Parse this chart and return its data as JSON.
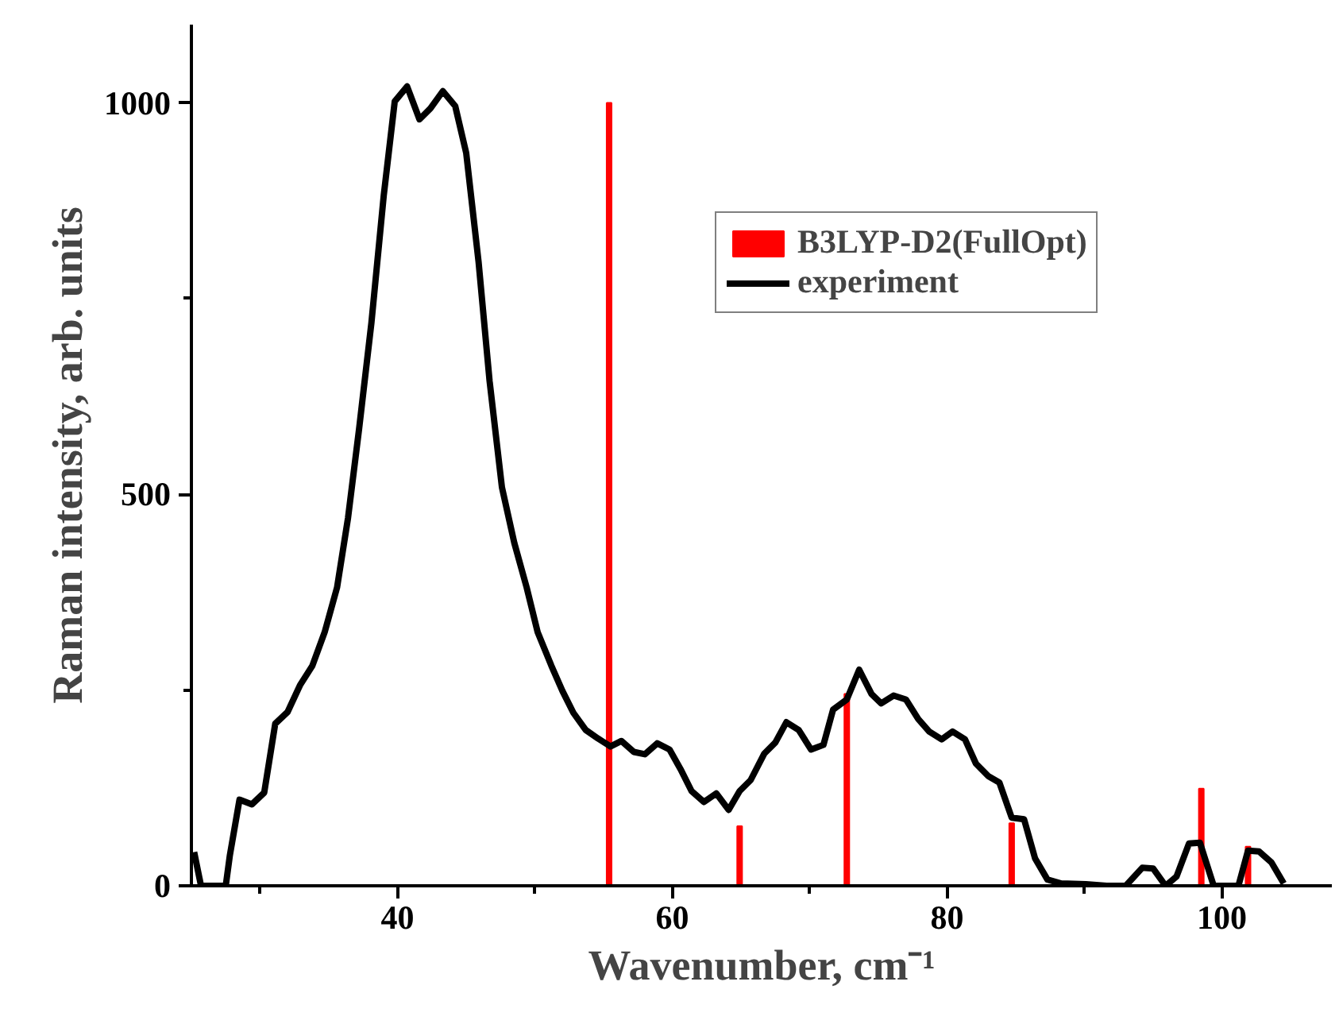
{
  "chart_data": {
    "type": "line",
    "xlabel": "Wavenumber, cm⁻¹",
    "ylabel": "Raman intensity, arb. units",
    "xlim": [
      25,
      108
    ],
    "ylim": [
      0,
      1100
    ],
    "xticks": [
      {
        "value": 30,
        "label": null
      },
      40,
      {
        "value": 50,
        "label": null
      },
      60,
      {
        "value": 70,
        "label": null
      },
      80,
      {
        "value": 90,
        "label": null
      },
      100
    ],
    "yticks": [
      0,
      {
        "value": 250,
        "label": null
      },
      500,
      {
        "value": 750,
        "label": null
      },
      1000
    ],
    "grid": false,
    "legend": "top right",
    "series": [
      {
        "name": "B3LYP-D2(FullOpt)",
        "type": "bar",
        "color": "#ff0000",
        "x": [
          55.4,
          64.9,
          72.7,
          84.7,
          98.5,
          101.9
        ],
        "values": [
          1000,
          76,
          245,
          80,
          124,
          50
        ]
      },
      {
        "name": "experiment",
        "color": "#000000",
        "x": [
          25.2,
          25.7,
          27.5,
          27.8,
          28.5,
          29.4,
          30.3,
          31.1,
          32.0,
          32.9,
          33.8,
          34.7,
          35.6,
          36.4,
          37.2,
          38.1,
          39.0,
          39.8,
          40.7,
          41.6,
          42.4,
          43.3,
          44.2,
          45.0,
          45.9,
          46.7,
          47.6,
          48.5,
          49.4,
          50.2,
          51.2,
          52.0,
          52.8,
          53.7,
          54.6,
          55.5,
          56.3,
          57.2,
          58.0,
          58.9,
          59.8,
          60.6,
          61.4,
          62.3,
          63.2,
          64.1,
          64.9,
          65.7,
          66.7,
          67.5,
          68.3,
          69.2,
          70.1,
          71.0,
          71.7,
          72.7,
          73.6,
          74.5,
          75.2,
          76.1,
          77.0,
          77.9,
          78.7,
          79.6,
          80.4,
          81.3,
          82.1,
          83.0,
          83.8,
          84.7,
          85.6,
          86.4,
          87.3,
          88.3,
          90.1,
          91.6,
          93.0,
          94.2,
          95.0,
          95.9,
          96.7,
          97.6,
          98.4,
          99.4,
          100.2,
          101.2,
          101.9,
          102.7,
          103.6,
          104.5
        ],
        "values": [
          43,
          0,
          0,
          39,
          110,
          104,
          119,
          207,
          222,
          256,
          281,
          324,
          381,
          470,
          583,
          719,
          882,
          1002,
          1021,
          979,
          993,
          1015,
          996,
          936,
          797,
          645,
          509,
          438,
          381,
          324,
          281,
          249,
          221,
          199,
          188,
          178,
          185,
          171,
          168,
          182,
          174,
          149,
          121,
          107,
          118,
          97,
          121,
          135,
          169,
          183,
          209,
          199,
          174,
          180,
          225,
          238,
          276,
          245,
          233,
          243,
          238,
          213,
          197,
          187,
          197,
          187,
          156,
          140,
          132,
          87,
          85,
          35,
          8,
          3,
          2,
          0,
          0,
          23,
          22,
          0,
          12,
          54,
          55,
          0,
          0,
          0,
          45,
          44,
          30,
          3
        ]
      }
    ]
  }
}
